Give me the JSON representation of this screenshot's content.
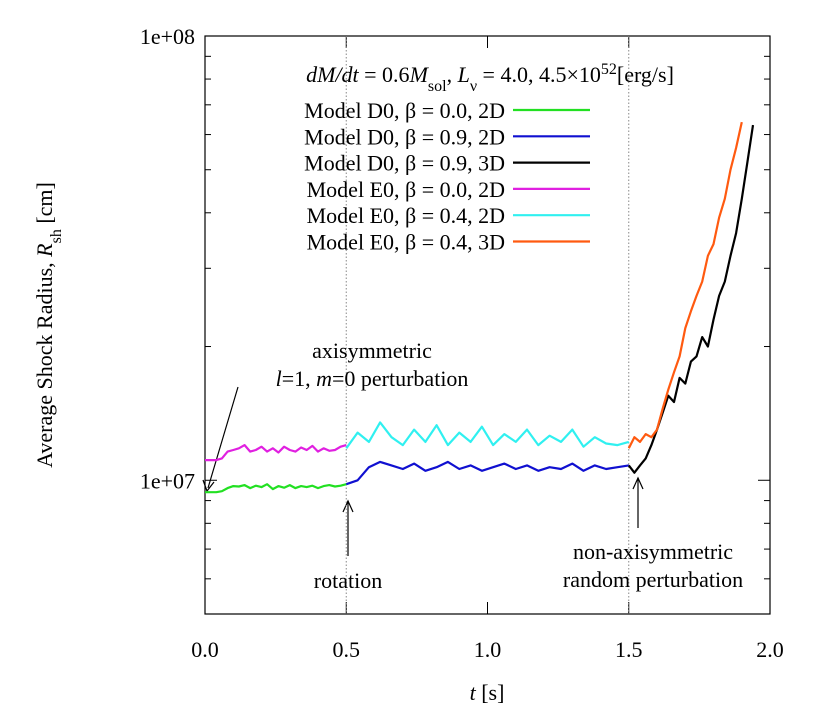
{
  "chart_data": {
    "type": "line",
    "title_parts": [
      {
        "text": "dM/dt",
        "style": "italic"
      },
      {
        "text": " = 0.6"
      },
      {
        "text": "M",
        "style": "italic"
      },
      {
        "text": "sol",
        "style": "sub"
      },
      {
        "text": ", "
      },
      {
        "text": "L",
        "style": "italic"
      },
      {
        "text": "ν",
        "style": "sub"
      },
      {
        "text": " = 4.0, 4.5×10"
      },
      {
        "text": "52",
        "style": "sup"
      },
      {
        "text": "[erg/s]"
      }
    ],
    "ylabel_parts": [
      {
        "text": "Average Shock Radius, "
      },
      {
        "text": "R",
        "style": "italic"
      },
      {
        "text": "sh",
        "style": "sub"
      },
      {
        "text": " [cm]"
      }
    ],
    "xlabel_parts": [
      {
        "text": "t",
        "style": "italic"
      },
      {
        "text": " [s]"
      }
    ],
    "xlim": [
      0,
      2.0
    ],
    "xticks": [
      {
        "value": 0,
        "label": "0.0"
      },
      0.5,
      {
        "value": 1,
        "label": "1.0"
      },
      1.5,
      {
        "value": 2,
        "label": "2.0"
      }
    ],
    "ylim": [
      5000000,
      100000000
    ],
    "log_y": true,
    "yticks": [
      {
        "value": 10000000,
        "label": "1e+07"
      },
      {
        "value": 100000000,
        "label": "1e+08"
      }
    ],
    "minor_yticks": [
      6000000,
      7000000,
      8000000,
      9000000,
      20000000,
      30000000,
      40000000,
      50000000,
      60000000,
      70000000,
      80000000,
      90000000
    ],
    "vlines": [
      0.5,
      1.5
    ],
    "annotations": [
      {
        "parts": [
          {
            "text": "axisymmetric"
          }
        ]
      },
      {
        "parts": [
          {
            "text": "l",
            "style": "italic"
          },
          {
            "text": "=1, "
          },
          {
            "text": "m",
            "style": "italic"
          },
          {
            "text": "=0 perturbation"
          }
        ]
      },
      {
        "parts": [
          {
            "text": "rotation"
          }
        ]
      },
      {
        "parts": [
          {
            "text": "non-axisymmetric"
          }
        ]
      },
      {
        "parts": [
          {
            "text": "random perturbation"
          }
        ]
      }
    ],
    "series": [
      {
        "name": "Model D0, β = 0.0, 2D",
        "color": "#22e022",
        "x": [
          0,
          0.02,
          0.04,
          0.06,
          0.08,
          0.1,
          0.12,
          0.14,
          0.16,
          0.18,
          0.2,
          0.22,
          0.24,
          0.26,
          0.28,
          0.3,
          0.32,
          0.34,
          0.36,
          0.38,
          0.4,
          0.42,
          0.44,
          0.46,
          0.48,
          0.5
        ],
        "values": [
          9400000,
          9400000,
          9400000,
          9450000,
          9600000,
          9700000,
          9680000,
          9750000,
          9600000,
          9720000,
          9650000,
          9800000,
          9550000,
          9700000,
          9620000,
          9750000,
          9600000,
          9700000,
          9650000,
          9720000,
          9600000,
          9700000,
          9750000,
          9680000,
          9720000,
          9800000
        ]
      },
      {
        "name": "Model D0, β = 0.9, 2D",
        "color": "#1010d0",
        "x": [
          0.5,
          0.54,
          0.58,
          0.62,
          0.66,
          0.7,
          0.74,
          0.78,
          0.82,
          0.86,
          0.9,
          0.94,
          0.98,
          1.02,
          1.06,
          1.1,
          1.14,
          1.18,
          1.22,
          1.26,
          1.3,
          1.34,
          1.38,
          1.42,
          1.46,
          1.5
        ],
        "values": [
          9800000,
          10000000,
          10700000,
          11000000,
          10800000,
          10600000,
          10900000,
          10500000,
          10700000,
          11000000,
          10600000,
          10800000,
          10500000,
          10700000,
          10900000,
          10600000,
          10800000,
          10500000,
          10700000,
          10600000,
          10900000,
          10500000,
          10800000,
          10600000,
          10700000,
          10800000
        ]
      },
      {
        "name": "Model D0, β = 0.9, 3D",
        "color": "#000000",
        "x": [
          1.5,
          1.52,
          1.54,
          1.56,
          1.58,
          1.6,
          1.62,
          1.64,
          1.66,
          1.68,
          1.7,
          1.72,
          1.74,
          1.76,
          1.78,
          1.8,
          1.82,
          1.84,
          1.86,
          1.88,
          1.9,
          1.92,
          1.94
        ],
        "values": [
          10800000,
          10400000,
          10800000,
          11200000,
          12000000,
          13000000,
          14200000,
          15500000,
          15000000,
          17000000,
          16500000,
          18500000,
          19000000,
          21000000,
          20000000,
          23000000,
          26000000,
          28000000,
          32000000,
          36000000,
          43000000,
          52000000,
          63000000
        ]
      },
      {
        "name": "Model E0, β = 0.0, 2D",
        "color": "#e020e0",
        "x": [
          0,
          0.02,
          0.04,
          0.06,
          0.08,
          0.1,
          0.12,
          0.14,
          0.16,
          0.18,
          0.2,
          0.22,
          0.24,
          0.26,
          0.28,
          0.3,
          0.32,
          0.34,
          0.36,
          0.38,
          0.4,
          0.42,
          0.44,
          0.46,
          0.48,
          0.5
        ],
        "values": [
          11100000,
          11100000,
          11100000,
          11200000,
          11600000,
          11700000,
          11800000,
          12000000,
          11600000,
          11700000,
          11900000,
          11600000,
          11800000,
          11550000,
          11900000,
          11700000,
          11600000,
          11850000,
          11700000,
          11950000,
          11600000,
          11800000,
          11650000,
          11700000,
          11900000,
          12000000
        ]
      },
      {
        "name": "Model E0, β = 0.4, 2D",
        "color": "#30f0f0",
        "x": [
          0.5,
          0.54,
          0.58,
          0.62,
          0.66,
          0.7,
          0.74,
          0.78,
          0.82,
          0.86,
          0.9,
          0.94,
          0.98,
          1.02,
          1.06,
          1.1,
          1.14,
          1.18,
          1.22,
          1.26,
          1.3,
          1.34,
          1.38,
          1.42,
          1.46,
          1.5
        ],
        "values": [
          11800000,
          12800000,
          12200000,
          13500000,
          12500000,
          12000000,
          13000000,
          12200000,
          13300000,
          12000000,
          12800000,
          12200000,
          13200000,
          12000000,
          12700000,
          12200000,
          13000000,
          12000000,
          12600000,
          12200000,
          13000000,
          11900000,
          12500000,
          12100000,
          12000000,
          12200000
        ]
      },
      {
        "name": "Model E0, β = 0.4, 3D",
        "color": "#ff5a10",
        "x": [
          1.5,
          1.52,
          1.54,
          1.56,
          1.58,
          1.6,
          1.62,
          1.64,
          1.66,
          1.68,
          1.7,
          1.72,
          1.74,
          1.76,
          1.78,
          1.8,
          1.82,
          1.84,
          1.86,
          1.88,
          1.9
        ],
        "values": [
          11800000,
          12500000,
          12200000,
          12700000,
          12500000,
          13000000,
          14500000,
          16000000,
          17500000,
          19000000,
          22000000,
          24000000,
          26000000,
          28000000,
          32000000,
          34000000,
          39000000,
          43000000,
          50000000,
          56000000,
          64000000
        ]
      }
    ]
  }
}
